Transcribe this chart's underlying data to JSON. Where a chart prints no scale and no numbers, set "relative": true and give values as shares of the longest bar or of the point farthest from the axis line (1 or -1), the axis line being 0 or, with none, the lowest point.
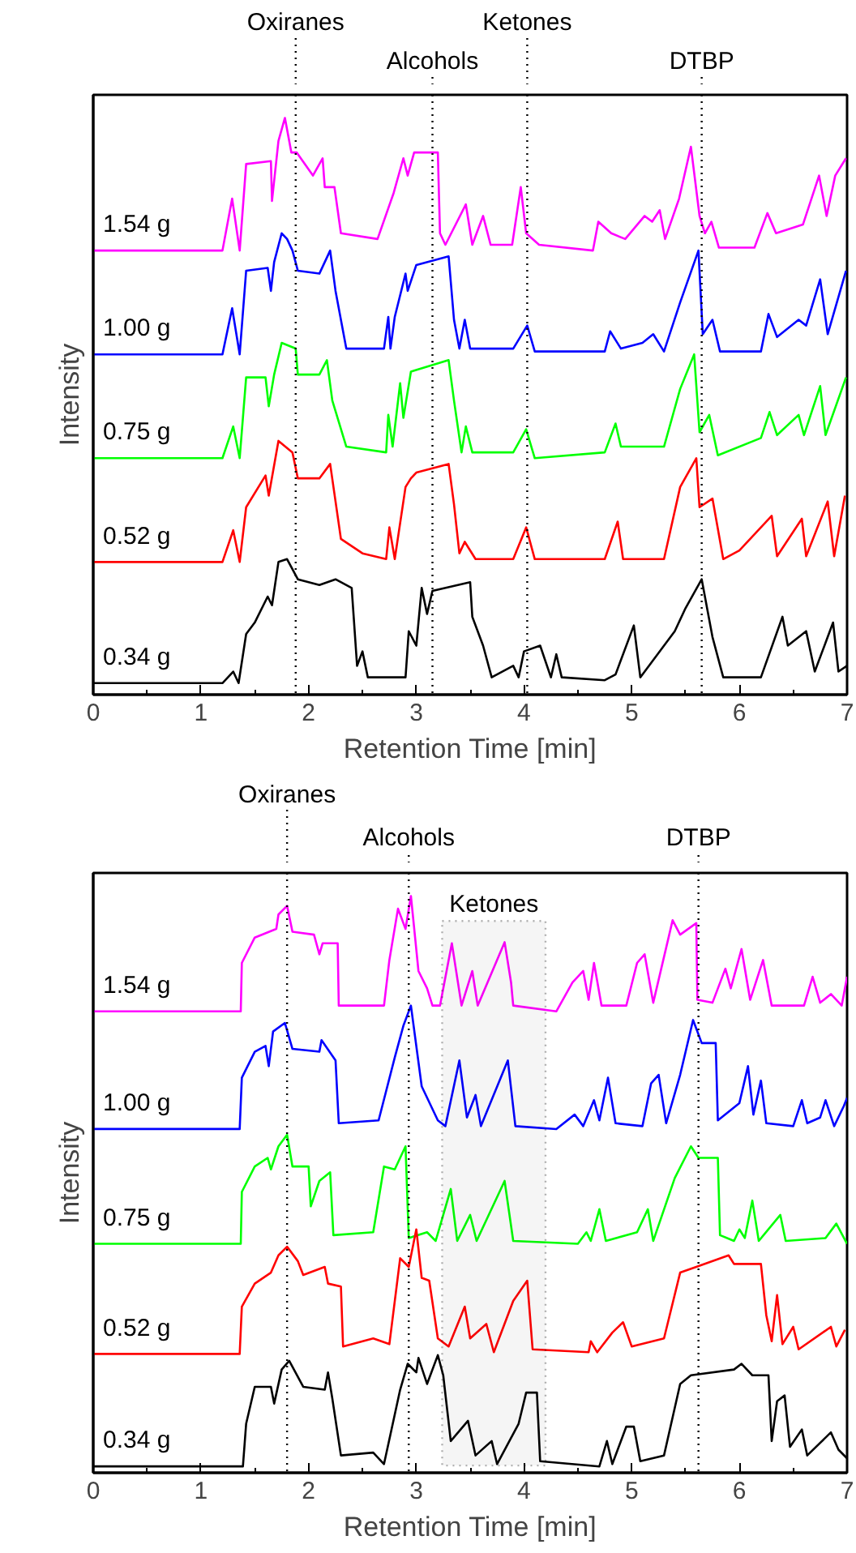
{
  "chart_data": [
    {
      "type": "line",
      "xlabel": "Retention Time [min]",
      "ylabel": "Intensity",
      "relative": true,
      "xlim": [
        0,
        7
      ],
      "xticks": [
        0,
        1,
        2,
        3,
        4,
        5,
        6,
        7
      ],
      "tick_labels": "x",
      "grid": false,
      "line_style": "solid",
      "marker": "none",
      "series": [
        {
          "name": "1.54 g",
          "color": "#ff00ff",
          "x": [
            0,
            1.2,
            1.29,
            1.36,
            1.42,
            1.65,
            1.66,
            1.72,
            1.78,
            1.84,
            1.89,
            2.04,
            2.13,
            2.15,
            2.24,
            2.3,
            2.64,
            2.79,
            2.88,
            2.92,
            2.98,
            3.2,
            3.22,
            3.27,
            3.46,
            3.52,
            3.62,
            3.69,
            3.89,
            3.97,
            4.02,
            4.14,
            4.64,
            4.69,
            4.81,
            4.94,
            5.12,
            5.19,
            5.26,
            5.31,
            5.44,
            5.55,
            5.63,
            5.68,
            5.74,
            5.81,
            6.14,
            6.26,
            6.34,
            6.59,
            6.74,
            6.81,
            6.89,
            6.99
          ],
          "values": [
            0.77,
            0.77,
            0.86,
            0.77,
            0.92,
            0.925,
            0.856,
            0.96,
            1.0,
            0.94,
            0.94,
            0.9,
            0.93,
            0.88,
            0.88,
            0.8,
            0.79,
            0.87,
            0.93,
            0.9,
            0.94,
            0.94,
            0.8,
            0.78,
            0.85,
            0.78,
            0.83,
            0.78,
            0.78,
            0.88,
            0.8,
            0.78,
            0.77,
            0.82,
            0.8,
            0.79,
            0.83,
            0.82,
            0.84,
            0.79,
            0.86,
            0.95,
            0.83,
            0.8,
            0.82,
            0.775,
            0.775,
            0.835,
            0.8,
            0.815,
            0.9,
            0.83,
            0.9,
            0.93
          ]
        },
        {
          "name": "1.00 g",
          "color": "#0000ff",
          "x": [
            0,
            1.2,
            1.29,
            1.36,
            1.42,
            1.62,
            1.65,
            1.68,
            1.75,
            1.8,
            1.85,
            1.9,
            2.1,
            2.2,
            2.25,
            2.35,
            2.7,
            2.74,
            2.76,
            2.8,
            2.9,
            2.92,
            3.0,
            3.3,
            3.35,
            3.4,
            3.45,
            3.5,
            3.9,
            4.03,
            4.1,
            4.75,
            4.8,
            4.9,
            5.1,
            5.2,
            5.3,
            5.45,
            5.62,
            5.66,
            5.75,
            5.82,
            6.2,
            6.27,
            6.35,
            6.55,
            6.62,
            6.75,
            6.82,
            6.99
          ],
          "values": [
            0.59,
            0.59,
            0.67,
            0.59,
            0.735,
            0.74,
            0.7,
            0.75,
            0.8,
            0.79,
            0.77,
            0.735,
            0.73,
            0.77,
            0.7,
            0.6,
            0.6,
            0.655,
            0.6,
            0.655,
            0.73,
            0.7,
            0.745,
            0.76,
            0.65,
            0.6,
            0.65,
            0.6,
            0.6,
            0.64,
            0.595,
            0.595,
            0.63,
            0.6,
            0.61,
            0.625,
            0.595,
            0.68,
            0.77,
            0.625,
            0.65,
            0.595,
            0.595,
            0.66,
            0.62,
            0.65,
            0.64,
            0.72,
            0.625,
            0.735
          ]
        },
        {
          "name": "0.75 g",
          "color": "#00ff00",
          "x": [
            0,
            1.2,
            1.3,
            1.36,
            1.42,
            1.6,
            1.63,
            1.68,
            1.75,
            1.88,
            1.9,
            2.1,
            2.17,
            2.22,
            2.35,
            2.72,
            2.74,
            2.78,
            2.85,
            2.88,
            2.95,
            3.3,
            3.35,
            3.42,
            3.46,
            3.52,
            3.9,
            4.02,
            4.1,
            4.75,
            4.85,
            4.9,
            5.3,
            5.45,
            5.58,
            5.63,
            5.72,
            5.8,
            6.2,
            6.28,
            6.35,
            6.55,
            6.6,
            6.75,
            6.8,
            6.99
          ],
          "values": [
            0.41,
            0.41,
            0.465,
            0.41,
            0.55,
            0.55,
            0.5,
            0.555,
            0.61,
            0.6,
            0.555,
            0.555,
            0.58,
            0.51,
            0.43,
            0.42,
            0.485,
            0.43,
            0.54,
            0.48,
            0.56,
            0.58,
            0.51,
            0.42,
            0.465,
            0.42,
            0.42,
            0.46,
            0.41,
            0.42,
            0.47,
            0.43,
            0.43,
            0.53,
            0.59,
            0.455,
            0.485,
            0.415,
            0.445,
            0.49,
            0.45,
            0.485,
            0.45,
            0.535,
            0.45,
            0.55
          ]
        },
        {
          "name": "0.52 g",
          "color": "#ff0000",
          "x": [
            0,
            1.2,
            1.3,
            1.36,
            1.42,
            1.6,
            1.63,
            1.72,
            1.85,
            1.9,
            2.1,
            2.2,
            2.3,
            2.5,
            2.72,
            2.75,
            2.8,
            2.9,
            2.95,
            3.0,
            3.3,
            3.35,
            3.4,
            3.45,
            3.55,
            3.9,
            4.02,
            4.1,
            4.75,
            4.87,
            4.92,
            5.3,
            5.45,
            5.6,
            5.63,
            5.75,
            5.85,
            6.0,
            6.3,
            6.35,
            6.58,
            6.62,
            6.82,
            6.88,
            6.98
          ],
          "values": [
            0.23,
            0.23,
            0.285,
            0.23,
            0.325,
            0.38,
            0.345,
            0.44,
            0.42,
            0.375,
            0.375,
            0.4,
            0.27,
            0.245,
            0.235,
            0.29,
            0.235,
            0.36,
            0.375,
            0.385,
            0.4,
            0.33,
            0.245,
            0.265,
            0.235,
            0.235,
            0.29,
            0.235,
            0.235,
            0.3,
            0.235,
            0.235,
            0.36,
            0.41,
            0.325,
            0.34,
            0.235,
            0.25,
            0.31,
            0.24,
            0.305,
            0.24,
            0.335,
            0.24,
            0.345
          ]
        },
        {
          "name": "0.34 g",
          "color": "#000000",
          "x": [
            0,
            1.2,
            1.3,
            1.35,
            1.42,
            1.5,
            1.62,
            1.66,
            1.72,
            1.8,
            1.9,
            2.1,
            2.25,
            2.4,
            2.45,
            2.5,
            2.55,
            2.9,
            2.93,
            3.0,
            3.05,
            3.1,
            3.15,
            3.5,
            3.52,
            3.62,
            3.7,
            3.9,
            3.95,
            4.0,
            4.15,
            4.25,
            4.3,
            4.35,
            4.75,
            4.85,
            5.02,
            5.08,
            5.4,
            5.5,
            5.65,
            5.75,
            5.85,
            6.2,
            6.4,
            6.45,
            6.62,
            6.7,
            6.87,
            6.92,
            7.0
          ],
          "values": [
            0.02,
            0.02,
            0.04,
            0.02,
            0.105,
            0.125,
            0.17,
            0.155,
            0.23,
            0.235,
            0.2,
            0.19,
            0.2,
            0.185,
            0.05,
            0.075,
            0.03,
            0.03,
            0.11,
            0.085,
            0.185,
            0.14,
            0.18,
            0.195,
            0.135,
            0.085,
            0.03,
            0.05,
            0.03,
            0.075,
            0.085,
            0.03,
            0.07,
            0.03,
            0.025,
            0.035,
            0.12,
            0.03,
            0.11,
            0.15,
            0.2,
            0.1,
            0.03,
            0.03,
            0.135,
            0.085,
            0.11,
            0.04,
            0.125,
            0.04,
            0.05
          ]
        }
      ],
      "ref_lines": [
        {
          "axis": "x",
          "value": 1.88,
          "label": "Oxiranes",
          "line_style": "dotted",
          "color": "#000000"
        },
        {
          "axis": "x",
          "value": 3.15,
          "label": "Alcohols",
          "line_style": "dotted",
          "color": "#000000"
        },
        {
          "axis": "x",
          "value": 4.03,
          "label": "Ketones",
          "line_style": "dotted",
          "color": "#000000"
        },
        {
          "axis": "x",
          "value": 5.65,
          "label": "DTBP",
          "line_style": "dotted",
          "color": "#000000"
        }
      ]
    },
    {
      "type": "line",
      "xlabel": "Retention Time [min]",
      "ylabel": "Intensity",
      "relative": true,
      "xlim": [
        0,
        7
      ],
      "xticks": [
        0,
        1,
        2,
        3,
        4,
        5,
        6,
        7
      ],
      "tick_labels": "x",
      "grid": false,
      "line_style": "solid",
      "marker": "none",
      "series": [
        {
          "name": "1.54 g",
          "color": "#ff00ff",
          "x": [
            0,
            1.37,
            1.38,
            1.5,
            1.7,
            1.72,
            1.8,
            1.85,
            2.05,
            2.1,
            2.13,
            2.27,
            2.28,
            2.7,
            2.75,
            2.83,
            2.9,
            2.95,
            3.02,
            3.1,
            3.15,
            3.22,
            3.33,
            3.42,
            3.52,
            3.57,
            3.82,
            3.88,
            3.9,
            4.3,
            4.45,
            4.55,
            4.6,
            4.65,
            4.72,
            4.95,
            5.05,
            5.12,
            5.2,
            5.38,
            5.45,
            5.6,
            5.61,
            5.75,
            5.87,
            5.92,
            6.02,
            6.1,
            6.22,
            6.3,
            6.6,
            6.68,
            6.75,
            6.85,
            6.95,
            7.0
          ],
          "values": [
            0.8,
            0.8,
            0.884,
            0.928,
            0.943,
            0.968,
            0.983,
            0.938,
            0.933,
            0.899,
            0.918,
            0.918,
            0.81,
            0.81,
            0.889,
            0.978,
            0.943,
            1.0,
            0.87,
            0.84,
            0.81,
            0.81,
            0.918,
            0.81,
            0.87,
            0.81,
            0.92,
            0.85,
            0.81,
            0.8,
            0.85,
            0.87,
            0.82,
            0.884,
            0.81,
            0.81,
            0.884,
            0.899,
            0.815,
            0.958,
            0.933,
            0.953,
            0.82,
            0.815,
            0.874,
            0.84,
            0.908,
            0.82,
            0.889,
            0.81,
            0.81,
            0.86,
            0.815,
            0.83,
            0.81,
            0.86
          ]
        },
        {
          "name": "1.00 g",
          "color": "#0000ff",
          "x": [
            0,
            1.36,
            1.38,
            1.5,
            1.6,
            1.63,
            1.67,
            1.78,
            1.85,
            2.1,
            2.12,
            2.25,
            2.28,
            2.65,
            2.8,
            2.88,
            2.95,
            3.05,
            3.2,
            3.27,
            3.4,
            3.47,
            3.55,
            3.6,
            3.85,
            3.92,
            4.3,
            4.47,
            4.55,
            4.65,
            4.7,
            4.78,
            4.85,
            5.1,
            5.18,
            5.25,
            5.32,
            5.45,
            5.57,
            5.65,
            5.78,
            5.8,
            6.0,
            6.08,
            6.13,
            6.2,
            6.25,
            6.5,
            6.58,
            6.63,
            6.75,
            6.8,
            6.88,
            6.97,
            7.0
          ],
          "values": [
            0.596,
            0.596,
            0.685,
            0.73,
            0.74,
            0.705,
            0.765,
            0.78,
            0.735,
            0.73,
            0.75,
            0.715,
            0.606,
            0.611,
            0.72,
            0.775,
            0.81,
            0.67,
            0.611,
            0.601,
            0.715,
            0.616,
            0.655,
            0.601,
            0.715,
            0.601,
            0.596,
            0.621,
            0.601,
            0.646,
            0.611,
            0.685,
            0.606,
            0.601,
            0.675,
            0.69,
            0.606,
            0.69,
            0.785,
            0.745,
            0.745,
            0.611,
            0.641,
            0.705,
            0.621,
            0.68,
            0.606,
            0.601,
            0.646,
            0.606,
            0.616,
            0.646,
            0.601,
            0.636,
            0.65
          ]
        },
        {
          "name": "0.75 g",
          "color": "#00ff00",
          "x": [
            0,
            1.37,
            1.38,
            1.5,
            1.62,
            1.65,
            1.72,
            1.8,
            1.85,
            2.0,
            2.02,
            2.1,
            2.2,
            2.23,
            2.6,
            2.7,
            2.8,
            2.9,
            2.93,
            3.1,
            3.18,
            3.32,
            3.38,
            3.5,
            3.56,
            3.82,
            3.9,
            4.5,
            4.58,
            4.62,
            4.7,
            4.76,
            5.05,
            5.15,
            5.2,
            5.4,
            5.55,
            5.62,
            5.8,
            5.82,
            5.95,
            6.0,
            6.05,
            6.12,
            6.18,
            6.38,
            6.43,
            6.8,
            6.9,
            7.0
          ],
          "values": [
            0.397,
            0.397,
            0.487,
            0.531,
            0.546,
            0.526,
            0.566,
            0.586,
            0.531,
            0.531,
            0.462,
            0.506,
            0.521,
            0.412,
            0.417,
            0.531,
            0.526,
            0.566,
            0.407,
            0.417,
            0.402,
            0.492,
            0.402,
            0.447,
            0.402,
            0.506,
            0.402,
            0.397,
            0.417,
            0.402,
            0.457,
            0.402,
            0.417,
            0.457,
            0.402,
            0.511,
            0.566,
            0.546,
            0.546,
            0.412,
            0.402,
            0.422,
            0.407,
            0.472,
            0.402,
            0.447,
            0.402,
            0.407,
            0.432,
            0.397
          ]
        },
        {
          "name": "0.52 g",
          "color": "#ff0000",
          "x": [
            0,
            1.36,
            1.38,
            1.5,
            1.65,
            1.72,
            1.8,
            1.9,
            1.95,
            2.15,
            2.18,
            2.3,
            2.32,
            2.6,
            2.75,
            2.85,
            2.93,
            3.0,
            3.05,
            3.12,
            3.2,
            3.3,
            3.45,
            3.5,
            3.65,
            3.72,
            3.9,
            4.03,
            4.08,
            4.6,
            4.62,
            4.68,
            4.82,
            4.92,
            5.0,
            5.3,
            5.45,
            5.6,
            5.9,
            5.95,
            6.2,
            6.25,
            6.3,
            6.35,
            6.4,
            6.5,
            6.55,
            6.85,
            6.9,
            6.98
          ],
          "values": [
            0.206,
            0.206,
            0.288,
            0.328,
            0.347,
            0.377,
            0.392,
            0.367,
            0.343,
            0.357,
            0.328,
            0.323,
            0.219,
            0.233,
            0.223,
            0.372,
            0.357,
            0.422,
            0.338,
            0.333,
            0.233,
            0.219,
            0.288,
            0.233,
            0.258,
            0.209,
            0.298,
            0.333,
            0.214,
            0.209,
            0.228,
            0.209,
            0.243,
            0.261,
            0.219,
            0.233,
            0.347,
            0.357,
            0.377,
            0.362,
            0.362,
            0.273,
            0.228,
            0.308,
            0.223,
            0.253,
            0.214,
            0.253,
            0.219,
            0.248
          ]
        },
        {
          "name": "0.34 g",
          "color": "#000000",
          "x": [
            0,
            1.39,
            1.42,
            1.5,
            1.65,
            1.68,
            1.75,
            1.82,
            1.95,
            2.15,
            2.18,
            2.22,
            2.3,
            2.6,
            2.7,
            2.85,
            2.92,
            3.0,
            3.02,
            3.1,
            3.2,
            3.25,
            3.32,
            3.48,
            3.55,
            3.7,
            3.75,
            3.95,
            4.02,
            4.12,
            4.15,
            4.7,
            4.77,
            4.82,
            4.95,
            5.02,
            5.08,
            5.3,
            5.45,
            5.55,
            5.95,
            6.02,
            6.12,
            6.27,
            6.3,
            6.35,
            6.42,
            6.47,
            6.58,
            6.63,
            6.85,
            6.92,
            7.0
          ],
          "values": [
            0.011,
            0.011,
            0.085,
            0.149,
            0.149,
            0.12,
            0.179,
            0.194,
            0.149,
            0.144,
            0.174,
            0.129,
            0.03,
            0.035,
            0.015,
            0.144,
            0.189,
            0.174,
            0.199,
            0.154,
            0.204,
            0.169,
            0.055,
            0.09,
            0.03,
            0.055,
            0.015,
            0.085,
            0.139,
            0.139,
            0.02,
            0.011,
            0.055,
            0.015,
            0.08,
            0.08,
            0.02,
            0.03,
            0.154,
            0.169,
            0.179,
            0.189,
            0.169,
            0.169,
            0.055,
            0.124,
            0.134,
            0.045,
            0.075,
            0.03,
            0.07,
            0.04,
            0.025
          ]
        }
      ],
      "ref_lines": [
        {
          "axis": "x",
          "value": 1.8,
          "label": "Oxiranes",
          "line_style": "dotted",
          "color": "#000000"
        },
        {
          "axis": "x",
          "value": 2.93,
          "label": "Alcohols",
          "line_style": "dotted",
          "color": "#000000"
        },
        {
          "axis": "x",
          "value": 5.62,
          "label": "DTBP",
          "line_style": "dotted",
          "color": "#000000"
        }
      ],
      "bands": [
        {
          "axis": "x",
          "from": 3.24,
          "to": 4.2,
          "label": "Ketones",
          "color": "#000000"
        }
      ]
    }
  ]
}
